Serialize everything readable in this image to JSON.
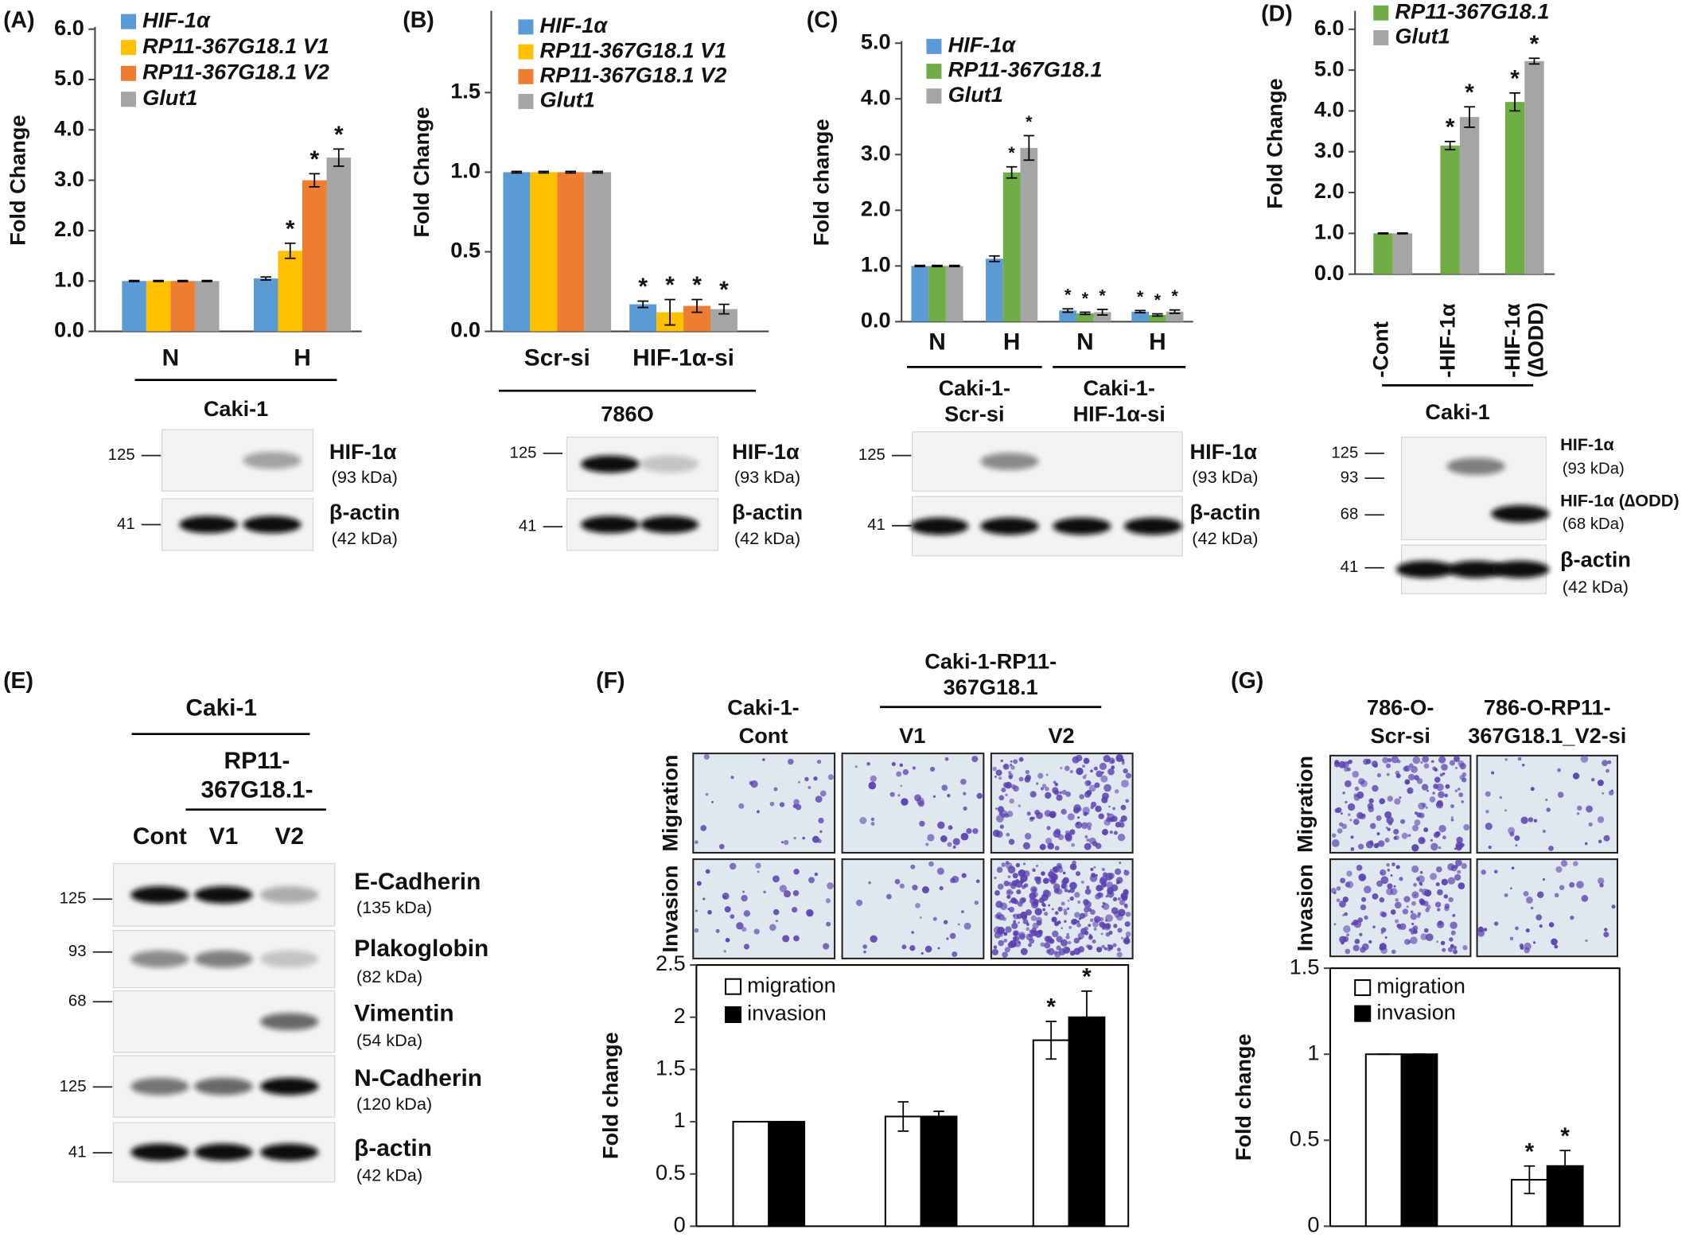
{
  "chart_data": [
    {
      "type": "bar",
      "panel": "(A)",
      "ylabel": "Fold Change",
      "categories": [
        "N",
        "H"
      ],
      "group_labels": [
        [
          "Caki-1"
        ]
      ],
      "series": [
        {
          "name": "HIF-1α",
          "color": "#5b9bd5",
          "values": [
            1.0,
            1.05
          ],
          "errors": [
            0.01,
            0.03
          ]
        },
        {
          "name": "RP11-367G18.1 V1",
          "color": "#ffc000",
          "values": [
            1.0,
            1.6
          ],
          "errors": [
            0.01,
            0.15
          ]
        },
        {
          "name": "RP11-367G18.1 V2",
          "color": "#ed7d31",
          "values": [
            1.0,
            3.0
          ],
          "errors": [
            0.01,
            0.13
          ]
        },
        {
          "name": "Glut1",
          "color": "#a5a5a5",
          "values": [
            1.0,
            3.45
          ],
          "errors": [
            0.01,
            0.17
          ]
        }
      ],
      "ylim": [
        0,
        6
      ],
      "yticks": [
        {
          "value": 0,
          "label": "0.0"
        },
        {
          "value": 1,
          "label": "1.0"
        },
        {
          "value": 2,
          "label": "2.0"
        },
        {
          "value": 3,
          "label": "3.0"
        },
        {
          "value": 4,
          "label": "4.0"
        },
        {
          "value": 5,
          "label": "5.0"
        },
        {
          "value": 6,
          "label": "6.0"
        }
      ],
      "annotations": [
        {
          "text": "*",
          "series": 1,
          "index": 1
        },
        {
          "text": "*",
          "series": 2,
          "index": 1
        },
        {
          "text": "*",
          "series": 3,
          "index": 1
        }
      ]
    },
    {
      "type": "bar",
      "panel": "(B)",
      "ylabel": "Fold Change",
      "categories": [
        "Scr-si",
        "HIF-1α-si"
      ],
      "group_labels": [
        [
          "786O"
        ]
      ],
      "series": [
        {
          "name": "HIF-1α",
          "color": "#5b9bd5",
          "values": [
            1.0,
            0.17
          ],
          "errors": [
            0.005,
            0.02
          ]
        },
        {
          "name": "RP11-367G18.1 V1",
          "color": "#ffc000",
          "values": [
            1.0,
            0.12
          ],
          "errors": [
            0.005,
            0.08
          ]
        },
        {
          "name": "RP11-367G18.1 V2",
          "color": "#ed7d31",
          "values": [
            1.0,
            0.16
          ],
          "errors": [
            0.005,
            0.04
          ]
        },
        {
          "name": "Glut1",
          "color": "#a5a5a5",
          "values": [
            1.0,
            0.14
          ],
          "errors": [
            0.005,
            0.03
          ]
        }
      ],
      "ylim": [
        0,
        2
      ],
      "yticks": [
        {
          "value": 0,
          "label": "0.0"
        },
        {
          "value": 0.5,
          "label": "0.5"
        },
        {
          "value": 1,
          "label": "1.0"
        },
        {
          "value": 1.5,
          "label": "1.5"
        }
      ],
      "annotations": [
        {
          "text": "*",
          "series": 0,
          "index": 1
        },
        {
          "text": "*",
          "series": 1,
          "index": 1
        },
        {
          "text": "*",
          "series": 2,
          "index": 1
        },
        {
          "text": "*",
          "series": 3,
          "index": 1
        }
      ]
    },
    {
      "type": "bar",
      "panel": "(C)",
      "ylabel": "Fold change",
      "categories": [
        "N",
        "H",
        "N",
        "H"
      ],
      "group_labels": [
        [
          "Caki-1-",
          "Scr-si"
        ],
        [
          "Caki-1-",
          "HIF-1α-si"
        ]
      ],
      "series": [
        {
          "name": "HIF-1α",
          "color": "#5b9bd5",
          "values": [
            1.0,
            1.13,
            0.2,
            0.18
          ],
          "errors": [
            0.01,
            0.05,
            0.03,
            0.02
          ]
        },
        {
          "name": "RP11-367G18.1",
          "color": "#70ad47",
          "values": [
            1.0,
            2.68,
            0.15,
            0.12
          ],
          "errors": [
            0.01,
            0.1,
            0.02,
            0.02
          ]
        },
        {
          "name": "Glut1",
          "color": "#a5a5a5",
          "values": [
            1.0,
            3.12,
            0.17,
            0.18
          ],
          "errors": [
            0.01,
            0.22,
            0.05,
            0.03
          ]
        }
      ],
      "ylim": [
        0,
        5
      ],
      "yticks": [
        {
          "value": 0,
          "label": "0.0"
        },
        {
          "value": 1,
          "label": "1.0"
        },
        {
          "value": 2,
          "label": "2.0"
        },
        {
          "value": 3,
          "label": "3.0"
        },
        {
          "value": 4,
          "label": "4.0"
        },
        {
          "value": 5,
          "label": "5.0"
        }
      ],
      "annotations": [
        {
          "text": "*",
          "series": 1,
          "index": 1
        },
        {
          "text": "*",
          "series": 2,
          "index": 1
        },
        {
          "text": "*",
          "series": 0,
          "index": 2
        },
        {
          "text": "*",
          "series": 1,
          "index": 2
        },
        {
          "text": "*",
          "series": 2,
          "index": 2
        },
        {
          "text": "*",
          "series": 0,
          "index": 3
        },
        {
          "text": "*",
          "series": 1,
          "index": 3
        },
        {
          "text": "*",
          "series": 2,
          "index": 3
        }
      ]
    },
    {
      "type": "bar",
      "panel": "(D)",
      "ylabel": "Fold Change",
      "categories": [
        [
          "-Cont"
        ],
        [
          "-HIF-1α"
        ],
        [
          "-HIF-1α",
          "(∆ODD)"
        ]
      ],
      "group_labels": [
        [
          "Caki-1"
        ]
      ],
      "series": [
        {
          "name": "RP11-367G18.1",
          "color": "#70ad47",
          "values": [
            1.0,
            3.15,
            4.22
          ],
          "errors": [
            0.01,
            0.1,
            0.22
          ]
        },
        {
          "name": "Glut1",
          "color": "#a5a5a5",
          "values": [
            1.0,
            3.85,
            5.22
          ],
          "errors": [
            0.01,
            0.25,
            0.07
          ]
        }
      ],
      "ylim": [
        0,
        6.4
      ],
      "yticks": [
        {
          "value": 0,
          "label": "0.0"
        },
        {
          "value": 1,
          "label": "1.0"
        },
        {
          "value": 2,
          "label": "2.0"
        },
        {
          "value": 3,
          "label": "3.0"
        },
        {
          "value": 4,
          "label": "4.0"
        },
        {
          "value": 5,
          "label": "5.0"
        },
        {
          "value": 6,
          "label": "6.0"
        }
      ],
      "annotations": [
        {
          "text": "*",
          "series": 0,
          "index": 1
        },
        {
          "text": "*",
          "series": 1,
          "index": 1
        },
        {
          "text": "*",
          "series": 0,
          "index": 2
        },
        {
          "text": "*",
          "series": 1,
          "index": 2
        }
      ]
    },
    {
      "type": "bar",
      "panel": "(F)",
      "ylabel": "Fold change",
      "categories": [
        [
          "Caki-1-",
          "Cont"
        ],
        [
          "V1"
        ],
        [
          "V2"
        ]
      ],
      "group_labels": [
        [
          "Caki-1-RP11-",
          "367G18.1"
        ]
      ],
      "image_rows": [
        "Migration",
        "Invasion"
      ],
      "series": [
        {
          "name": "migration",
          "color": "#ffffff",
          "values": [
            1.0,
            1.05,
            1.78
          ],
          "errors": [
            0,
            0.14,
            0.18
          ]
        },
        {
          "name": "invasion",
          "color": "#000000",
          "values": [
            1.0,
            1.05,
            2.0
          ],
          "errors": [
            0,
            0.05,
            0.25
          ]
        }
      ],
      "ylim": [
        0,
        2.5
      ],
      "yticks": [
        0,
        0.5,
        1,
        1.5,
        2,
        2.5
      ],
      "annotations": [
        {
          "text": "*",
          "series": 0,
          "index": 2
        },
        {
          "text": "*",
          "series": 1,
          "index": 2
        }
      ]
    },
    {
      "type": "bar",
      "panel": "(G)",
      "ylabel": "Fold change",
      "categories": [
        [
          "786-O-",
          "Scr-si"
        ],
        [
          "786-O-RP11-",
          "367G18.1_V2-si"
        ]
      ],
      "image_rows": [
        "Migration",
        "Invasion"
      ],
      "series": [
        {
          "name": "migration",
          "color": "#ffffff",
          "values": [
            1.0,
            0.27
          ],
          "errors": [
            0,
            0.08
          ]
        },
        {
          "name": "invasion",
          "color": "#000000",
          "values": [
            1.0,
            0.35
          ],
          "errors": [
            0,
            0.09
          ]
        }
      ],
      "ylim": [
        0,
        1.5
      ],
      "yticks": [
        0,
        0.5,
        1,
        1.5
      ],
      "annotations": [
        {
          "text": "*",
          "series": 0,
          "index": 1
        },
        {
          "text": "*",
          "series": 1,
          "index": 1
        }
      ]
    }
  ],
  "panel_e": {
    "panel": "(E)",
    "group": "Caki-1",
    "subgroup": [
      "RP11-",
      "367G18.1-"
    ],
    "lanes": [
      "Cont",
      "V1",
      "V2"
    ]
  },
  "blots": [
    {
      "markers": [
        "125",
        "41"
      ],
      "proteins": [
        {
          "name": "HIF-1α",
          "size": "(93 kDa)"
        },
        {
          "name": "β-actin",
          "size": "(42 kDa)"
        }
      ]
    },
    {
      "markers": [
        "125",
        "41"
      ],
      "proteins": [
        {
          "name": "HIF-1α",
          "size": "(93 kDa)"
        },
        {
          "name": "β-actin",
          "size": "(42 kDa)"
        }
      ]
    },
    {
      "markers": [
        "125",
        "41"
      ],
      "proteins": [
        {
          "name": "HIF-1α",
          "size": "(93 kDa)"
        },
        {
          "name": "β-actin",
          "size": "(42 kDa)"
        }
      ]
    },
    {
      "markers": [
        "125",
        "93",
        "68",
        "41"
      ],
      "proteins": [
        {
          "name": "HIF-1α",
          "size": "(93 kDa)"
        },
        {
          "name": "HIF-1α (∆ODD)",
          "size": "(68 kDa)"
        },
        {
          "name": "β-actin",
          "size": "(42 kDa)"
        }
      ]
    },
    {
      "markers": [
        "125",
        "93",
        "68",
        "125",
        "41"
      ],
      "proteins": [
        {
          "name": "E-Cadherin",
          "size": "(135 kDa)"
        },
        {
          "name": "Plakoglobin",
          "size": "(82 kDa)"
        },
        {
          "name": "Vimentin",
          "size": "(54 kDa)"
        },
        {
          "name": "N-Cadherin",
          "size": "(120 kDa)"
        },
        {
          "name": "β-actin",
          "size": "(42 kDa)"
        }
      ]
    }
  ]
}
